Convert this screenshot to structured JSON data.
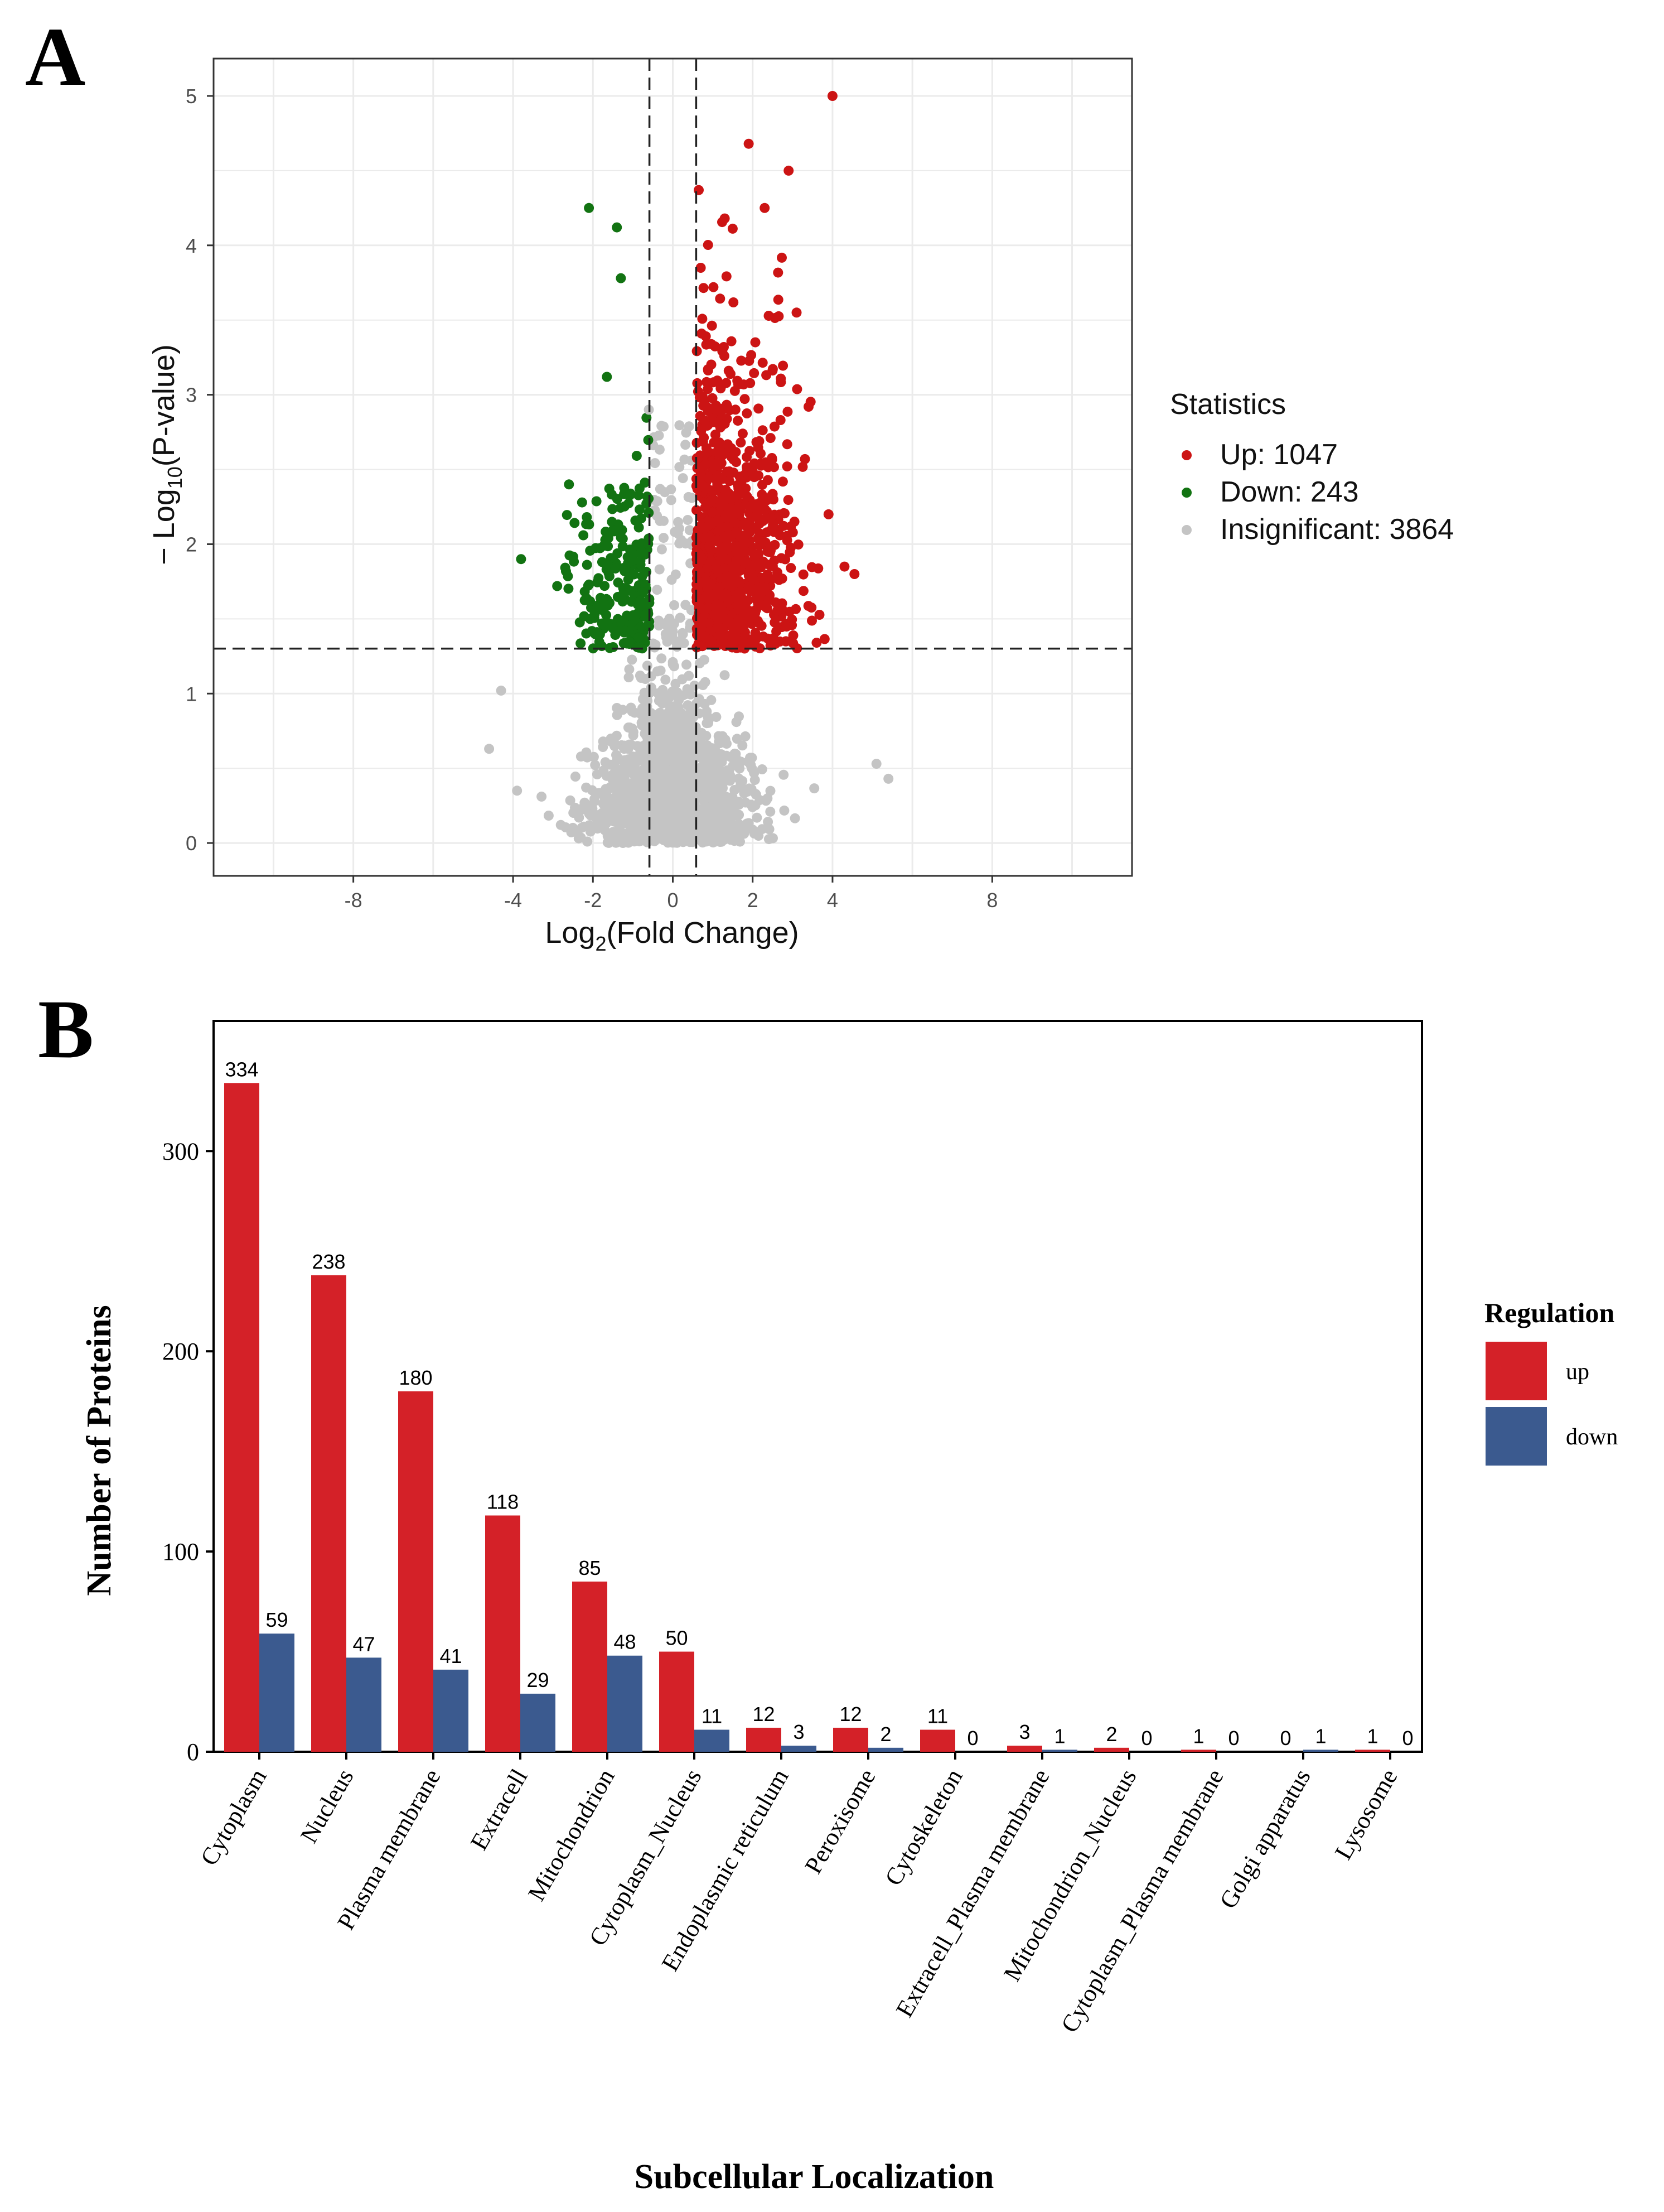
{
  "panels": {
    "a_label": "A",
    "b_label": "B"
  },
  "colors": {
    "up": "#cc1414",
    "down": "#127312",
    "insignificant": "#c4c4c4",
    "bar_up": "#d42128",
    "bar_down": "#3b5a8f"
  },
  "chart_data": [
    {
      "type": "scatter",
      "title": "",
      "xlabel": "Log2(Fold Change)",
      "xlabel_base": "Log",
      "xlabel_sub": "2",
      "xlabel_rest": "(Fold Change)",
      "ylabel": "− Log10(P-value)",
      "ylabel_base": "− Log",
      "ylabel_sub": "10",
      "ylabel_rest": "(P-value)",
      "xlim": [
        -11.5,
        11.5
      ],
      "ylim": [
        -0.22,
        5.25
      ],
      "x_ticks": [
        -8,
        -4,
        -2,
        0,
        2,
        4,
        8
      ],
      "y_ticks": [
        0,
        1,
        2,
        3,
        4,
        5
      ],
      "fold_change_cutoffs": [
        -0.585,
        0.585
      ],
      "pvalue_cutoff_line": 1.301,
      "grid": true,
      "legend": {
        "title": "Statistics",
        "position": "right",
        "entries": [
          {
            "key": "up",
            "label": "Up: 1047"
          },
          {
            "key": "down",
            "label": "Down: 243"
          },
          {
            "key": "insignificant",
            "label": "Insignificant: 3864"
          }
        ]
      },
      "series": [
        {
          "name": "Up",
          "count": 1047,
          "x_range": [
            0.585,
            4.6
          ],
          "y_range": [
            1.301,
            5.0
          ]
        },
        {
          "name": "Down",
          "count": 243,
          "x_range": [
            -3.8,
            -0.585
          ],
          "y_range": [
            1.301,
            4.3
          ]
        },
        {
          "name": "Insignificant",
          "count": 3864,
          "x_range": [
            -4.6,
            5.4
          ],
          "y_range": [
            0.0,
            2.9
          ]
        }
      ],
      "annotated_points": [
        {
          "x": 4.0,
          "y": 5.0,
          "group": "up"
        },
        {
          "x": 1.9,
          "y": 4.68,
          "group": "up"
        },
        {
          "x": 2.9,
          "y": 4.5,
          "group": "up"
        },
        {
          "x": 0.65,
          "y": 4.37,
          "group": "up"
        },
        {
          "x": 2.3,
          "y": 4.25,
          "group": "up"
        },
        {
          "x": 1.3,
          "y": 4.18,
          "group": "up"
        },
        {
          "x": 0.7,
          "y": 3.85,
          "group": "up"
        },
        {
          "x": 3.1,
          "y": 3.55,
          "group": "up"
        },
        {
          "x": 3.4,
          "y": 2.92,
          "group": "up"
        },
        {
          "x": 4.3,
          "y": 1.85,
          "group": "up"
        },
        {
          "x": 4.55,
          "y": 1.8,
          "group": "up"
        },
        {
          "x": 3.9,
          "y": 2.2,
          "group": "up"
        },
        {
          "x": -2.1,
          "y": 4.25,
          "group": "down"
        },
        {
          "x": -1.4,
          "y": 4.12,
          "group": "down"
        },
        {
          "x": -1.3,
          "y": 3.78,
          "group": "down"
        },
        {
          "x": -1.65,
          "y": 3.12,
          "group": "down"
        },
        {
          "x": -3.8,
          "y": 1.9,
          "group": "down"
        },
        {
          "x": -2.6,
          "y": 2.4,
          "group": "down"
        },
        {
          "x": -4.3,
          "y": 1.02,
          "group": "insignificant"
        },
        {
          "x": -4.6,
          "y": 0.63,
          "group": "insignificant"
        },
        {
          "x": -3.9,
          "y": 0.35,
          "group": "insignificant"
        },
        {
          "x": 5.1,
          "y": 0.53,
          "group": "insignificant"
        },
        {
          "x": 5.4,
          "y": 0.43,
          "group": "insignificant"
        },
        {
          "x": -0.6,
          "y": 2.9,
          "group": "insignificant"
        }
      ]
    },
    {
      "type": "bar",
      "title": "",
      "xlabel": "Subcellular Localization",
      "ylabel": "Number of Proteins",
      "ylim": [
        0,
        365
      ],
      "y_ticks": [
        0,
        100,
        200,
        300
      ],
      "grid": false,
      "categories": [
        "Cytoplasm",
        "Nucleus",
        "Plasma membrane",
        "Extracell",
        "Mitochondrion",
        "Cytoplasm_Nucleus",
        "Endoplasmic reticulum",
        "Peroxisome",
        "Cytoskeleton",
        "Extracell_Plasma membrane",
        "Mitochondrion_Nucleus",
        "Cytoplasm_Plasma membrane",
        "Golgi apparatus",
        "Lysosome"
      ],
      "series": [
        {
          "name": "up",
          "values": [
            334,
            238,
            180,
            118,
            85,
            50,
            12,
            12,
            11,
            3,
            2,
            1,
            0,
            1
          ]
        },
        {
          "name": "down",
          "values": [
            59,
            47,
            41,
            29,
            48,
            11,
            3,
            2,
            0,
            1,
            0,
            0,
            1,
            0
          ]
        }
      ],
      "legend": {
        "title": "Regulation",
        "position": "right",
        "entries": [
          {
            "key": "up",
            "label": "up"
          },
          {
            "key": "down",
            "label": "down"
          }
        ]
      }
    }
  ]
}
